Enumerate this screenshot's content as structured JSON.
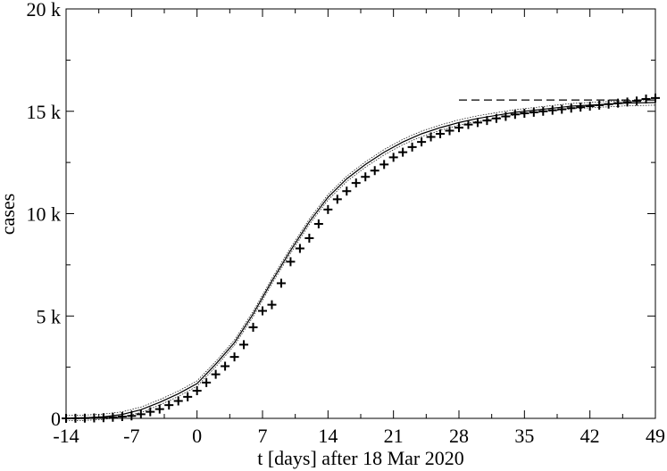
{
  "chart_data": {
    "type": "scatter",
    "xlabel": "t [days] after 18 Mar 2020",
    "ylabel": "cases",
    "xlim": [
      -14,
      49
    ],
    "ylim": [
      0,
      20000
    ],
    "x_ticks": [
      -14,
      -7,
      0,
      7,
      14,
      21,
      28,
      35,
      42,
      49
    ],
    "x_tick_labels": [
      "-14",
      "-7",
      "0",
      "7",
      "14",
      "21",
      "28",
      "35",
      "42",
      "49"
    ],
    "y_ticks": [
      0,
      5000,
      10000,
      15000,
      20000
    ],
    "y_tick_labels": [
      "0",
      "5 k",
      "10 k",
      "15 k",
      "20 k"
    ],
    "grid": false,
    "series": [
      {
        "kind": "markers",
        "marker": "plus",
        "x": [
          -14,
          -13,
          -12,
          -11,
          -10,
          -9,
          -8,
          -7,
          -6,
          -5,
          -4,
          -3,
          -2,
          -1,
          0,
          1,
          2,
          3,
          4,
          5,
          6,
          7,
          8,
          9,
          10,
          11,
          12,
          13,
          14,
          15,
          16,
          17,
          18,
          19,
          20,
          21,
          22,
          23,
          24,
          25,
          26,
          27,
          28,
          29,
          30,
          31,
          32,
          33,
          34,
          35,
          36,
          37,
          38,
          39,
          40,
          41,
          42,
          43,
          44,
          45,
          46,
          47,
          48,
          49
        ],
        "y": [
          0,
          5,
          10,
          20,
          30,
          55,
          85,
          120,
          200,
          320,
          450,
          650,
          850,
          1050,
          1350,
          1750,
          2150,
          2550,
          3000,
          3600,
          4450,
          5250,
          5550,
          6600,
          7650,
          8300,
          8800,
          9500,
          10200,
          10700,
          11100,
          11500,
          11800,
          12100,
          12400,
          12750,
          13000,
          13250,
          13500,
          13750,
          13900,
          14050,
          14200,
          14350,
          14450,
          14550,
          14650,
          14750,
          14850,
          14900,
          14950,
          15000,
          15050,
          15100,
          15150,
          15200,
          15250,
          15300,
          15350,
          15400,
          15450,
          15500,
          15600,
          15650
        ]
      },
      {
        "kind": "fit-line",
        "style": "solid",
        "color": "#000000",
        "x": [
          -14,
          -12,
          -10,
          -8,
          -6,
          -4,
          -2,
          0,
          2,
          4,
          6,
          8,
          10,
          12,
          14,
          16,
          18,
          20,
          22,
          24,
          26,
          28,
          30,
          32,
          34,
          36,
          38,
          40,
          42,
          44,
          46,
          48,
          49
        ],
        "y": [
          10,
          30,
          80,
          190,
          420,
          780,
          1200,
          1700,
          2650,
          3700,
          5100,
          6700,
          8200,
          9600,
          10800,
          11700,
          12400,
          13000,
          13500,
          13900,
          14200,
          14450,
          14650,
          14800,
          14950,
          15050,
          15150,
          15250,
          15300,
          15350,
          15400,
          15420,
          15430
        ]
      },
      {
        "kind": "asymptote",
        "style": "dashed",
        "color": "#000000",
        "x": [
          28,
          49
        ],
        "y": [
          15550,
          15550
        ]
      }
    ]
  }
}
